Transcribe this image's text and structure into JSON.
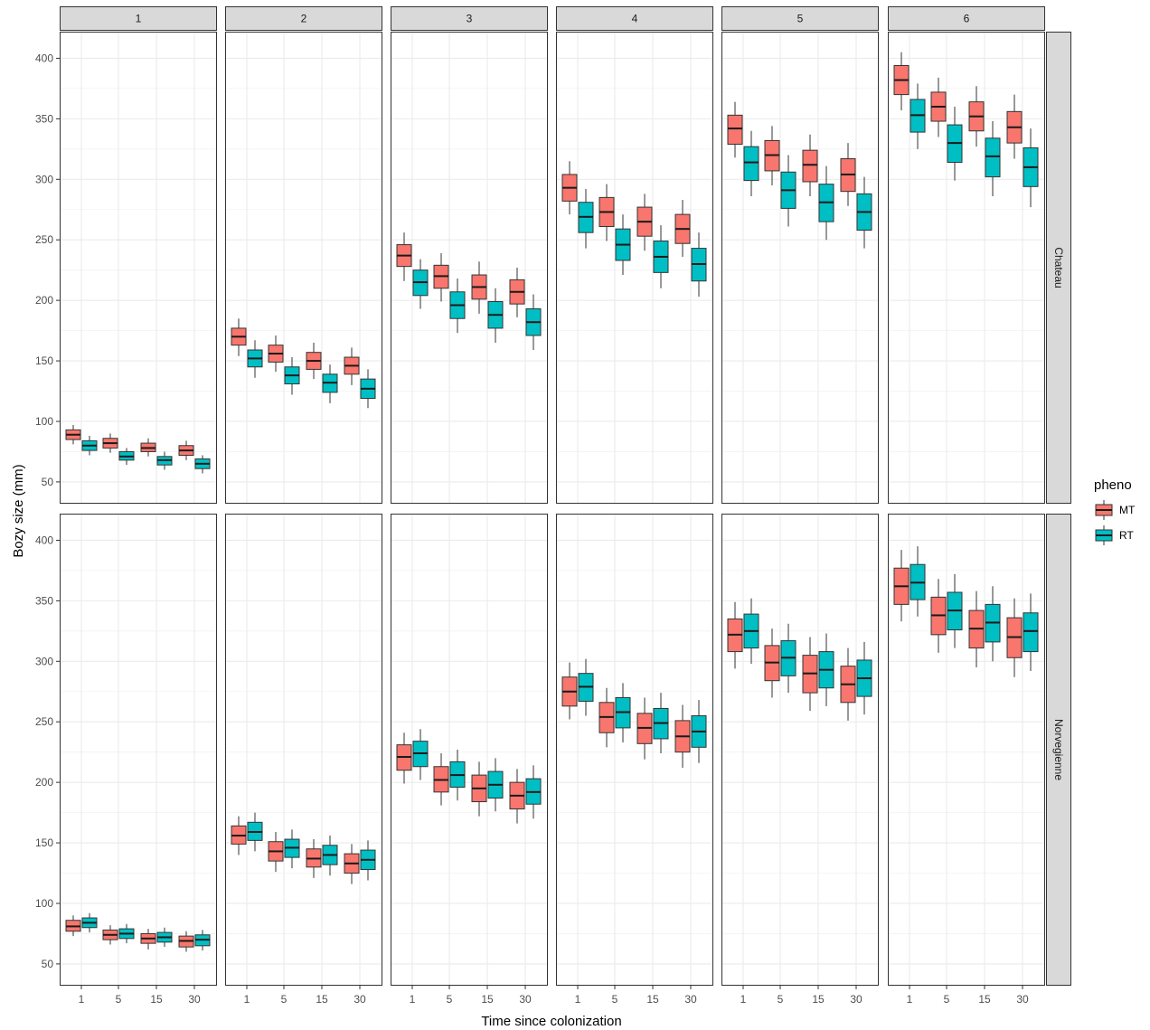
{
  "chart_data": {
    "type": "boxplot",
    "xlabel": "Time since colonization",
    "ylabel": "Bozy size (mm)",
    "ylim": [
      32,
      422
    ],
    "yticks": [
      50,
      100,
      150,
      200,
      250,
      300,
      350,
      400
    ],
    "x_categories": [
      "1",
      "5",
      "15",
      "30"
    ],
    "facet_cols": [
      "1",
      "2",
      "3",
      "4",
      "5",
      "6"
    ],
    "facet_rows": [
      "Chateau",
      "Norvegienne"
    ],
    "grid": true,
    "legend": {
      "title": "pheno",
      "position": "right",
      "entries": [
        {
          "label": "MT",
          "color": "#F8766D"
        },
        {
          "label": "RT",
          "color": "#00BFC4"
        }
      ]
    },
    "panels": [
      {
        "row": "Chateau",
        "col": "1",
        "groups": [
          {
            "x": "1",
            "MT": {
              "lw": 81,
              "q1": 85,
              "med": 89,
              "q3": 93,
              "uw": 97
            },
            "RT": {
              "lw": 72,
              "q1": 76,
              "med": 80,
              "q3": 84,
              "uw": 88
            }
          },
          {
            "x": "5",
            "MT": {
              "lw": 74,
              "q1": 78,
              "med": 82,
              "q3": 86,
              "uw": 90
            },
            "RT": {
              "lw": 64,
              "q1": 68,
              "med": 71,
              "q3": 75,
              "uw": 78
            }
          },
          {
            "x": "15",
            "MT": {
              "lw": 71,
              "q1": 75,
              "med": 78,
              "q3": 82,
              "uw": 86
            },
            "RT": {
              "lw": 60,
              "q1": 64,
              "med": 68,
              "q3": 71,
              "uw": 75
            }
          },
          {
            "x": "30",
            "MT": {
              "lw": 68,
              "q1": 72,
              "med": 76,
              "q3": 80,
              "uw": 84
            },
            "RT": {
              "lw": 57,
              "q1": 61,
              "med": 65,
              "q3": 69,
              "uw": 72
            }
          }
        ]
      },
      {
        "row": "Chateau",
        "col": "2",
        "groups": [
          {
            "x": "1",
            "MT": {
              "lw": 154,
              "q1": 163,
              "med": 170,
              "q3": 177,
              "uw": 185
            },
            "RT": {
              "lw": 136,
              "q1": 145,
              "med": 152,
              "q3": 159,
              "uw": 167
            }
          },
          {
            "x": "5",
            "MT": {
              "lw": 141,
              "q1": 149,
              "med": 156,
              "q3": 163,
              "uw": 171
            },
            "RT": {
              "lw": 122,
              "q1": 131,
              "med": 138,
              "q3": 145,
              "uw": 153
            }
          },
          {
            "x": "15",
            "MT": {
              "lw": 135,
              "q1": 143,
              "med": 150,
              "q3": 157,
              "uw": 165
            },
            "RT": {
              "lw": 115,
              "q1": 124,
              "med": 132,
              "q3": 139,
              "uw": 147
            }
          },
          {
            "x": "30",
            "MT": {
              "lw": 130,
              "q1": 139,
              "med": 146,
              "q3": 153,
              "uw": 161
            },
            "RT": {
              "lw": 111,
              "q1": 119,
              "med": 127,
              "q3": 135,
              "uw": 143
            }
          }
        ]
      },
      {
        "row": "Chateau",
        "col": "3",
        "groups": [
          {
            "x": "1",
            "MT": {
              "lw": 216,
              "q1": 228,
              "med": 237,
              "q3": 246,
              "uw": 256
            },
            "RT": {
              "lw": 193,
              "q1": 204,
              "med": 215,
              "q3": 225,
              "uw": 234
            }
          },
          {
            "x": "5",
            "MT": {
              "lw": 199,
              "q1": 210,
              "med": 220,
              "q3": 229,
              "uw": 239
            },
            "RT": {
              "lw": 173,
              "q1": 185,
              "med": 196,
              "q3": 207,
              "uw": 218
            }
          },
          {
            "x": "15",
            "MT": {
              "lw": 189,
              "q1": 201,
              "med": 211,
              "q3": 221,
              "uw": 232
            },
            "RT": {
              "lw": 165,
              "q1": 177,
              "med": 188,
              "q3": 199,
              "uw": 210
            }
          },
          {
            "x": "30",
            "MT": {
              "lw": 186,
              "q1": 197,
              "med": 207,
              "q3": 217,
              "uw": 227
            },
            "RT": {
              "lw": 159,
              "q1": 171,
              "med": 182,
              "q3": 193,
              "uw": 205
            }
          }
        ]
      },
      {
        "row": "Chateau",
        "col": "4",
        "groups": [
          {
            "x": "1",
            "MT": {
              "lw": 271,
              "q1": 282,
              "med": 293,
              "q3": 304,
              "uw": 315
            },
            "RT": {
              "lw": 243,
              "q1": 256,
              "med": 269,
              "q3": 281,
              "uw": 292
            }
          },
          {
            "x": "5",
            "MT": {
              "lw": 249,
              "q1": 261,
              "med": 273,
              "q3": 285,
              "uw": 296
            },
            "RT": {
              "lw": 221,
              "q1": 233,
              "med": 246,
              "q3": 259,
              "uw": 271
            }
          },
          {
            "x": "15",
            "MT": {
              "lw": 241,
              "q1": 253,
              "med": 265,
              "q3": 277,
              "uw": 288
            },
            "RT": {
              "lw": 210,
              "q1": 223,
              "med": 236,
              "q3": 249,
              "uw": 262
            }
          },
          {
            "x": "30",
            "MT": {
              "lw": 236,
              "q1": 247,
              "med": 259,
              "q3": 271,
              "uw": 283
            },
            "RT": {
              "lw": 203,
              "q1": 216,
              "med": 230,
              "q3": 243,
              "uw": 256
            }
          }
        ]
      },
      {
        "row": "Chateau",
        "col": "5",
        "groups": [
          {
            "x": "1",
            "MT": {
              "lw": 318,
              "q1": 329,
              "med": 342,
              "q3": 353,
              "uw": 364
            },
            "RT": {
              "lw": 286,
              "q1": 299,
              "med": 314,
              "q3": 327,
              "uw": 340
            }
          },
          {
            "x": "5",
            "MT": {
              "lw": 295,
              "q1": 307,
              "med": 320,
              "q3": 332,
              "uw": 344
            },
            "RT": {
              "lw": 261,
              "q1": 276,
              "med": 291,
              "q3": 306,
              "uw": 320
            }
          },
          {
            "x": "15",
            "MT": {
              "lw": 286,
              "q1": 298,
              "med": 312,
              "q3": 324,
              "uw": 337
            },
            "RT": {
              "lw": 250,
              "q1": 265,
              "med": 281,
              "q3": 296,
              "uw": 311
            }
          },
          {
            "x": "30",
            "MT": {
              "lw": 278,
              "q1": 290,
              "med": 304,
              "q3": 317,
              "uw": 330
            },
            "RT": {
              "lw": 243,
              "q1": 258,
              "med": 273,
              "q3": 288,
              "uw": 302
            }
          }
        ]
      },
      {
        "row": "Chateau",
        "col": "6",
        "groups": [
          {
            "x": "1",
            "MT": {
              "lw": 357,
              "q1": 370,
              "med": 382,
              "q3": 394,
              "uw": 405
            },
            "RT": {
              "lw": 325,
              "q1": 339,
              "med": 353,
              "q3": 366,
              "uw": 379
            }
          },
          {
            "x": "5",
            "MT": {
              "lw": 335,
              "q1": 348,
              "med": 360,
              "q3": 372,
              "uw": 384
            },
            "RT": {
              "lw": 299,
              "q1": 314,
              "med": 330,
              "q3": 345,
              "uw": 360
            }
          },
          {
            "x": "15",
            "MT": {
              "lw": 327,
              "q1": 340,
              "med": 352,
              "q3": 364,
              "uw": 377
            },
            "RT": {
              "lw": 286,
              "q1": 302,
              "med": 319,
              "q3": 334,
              "uw": 348
            }
          },
          {
            "x": "30",
            "MT": {
              "lw": 317,
              "q1": 330,
              "med": 343,
              "q3": 356,
              "uw": 370
            },
            "RT": {
              "lw": 277,
              "q1": 294,
              "med": 310,
              "q3": 326,
              "uw": 342
            }
          }
        ]
      },
      {
        "row": "Norvegienne",
        "col": "1",
        "groups": [
          {
            "x": "1",
            "MT": {
              "lw": 73,
              "q1": 77,
              "med": 81,
              "q3": 86,
              "uw": 90
            },
            "RT": {
              "lw": 76,
              "q1": 80,
              "med": 84,
              "q3": 88,
              "uw": 92
            }
          },
          {
            "x": "5",
            "MT": {
              "lw": 66,
              "q1": 70,
              "med": 74,
              "q3": 78,
              "uw": 82
            },
            "RT": {
              "lw": 67,
              "q1": 71,
              "med": 75,
              "q3": 79,
              "uw": 83
            }
          },
          {
            "x": "15",
            "MT": {
              "lw": 62,
              "q1": 67,
              "med": 71,
              "q3": 75,
              "uw": 79
            },
            "RT": {
              "lw": 64,
              "q1": 68,
              "med": 72,
              "q3": 76,
              "uw": 80
            }
          },
          {
            "x": "30",
            "MT": {
              "lw": 60,
              "q1": 64,
              "med": 69,
              "q3": 73,
              "uw": 77
            },
            "RT": {
              "lw": 61,
              "q1": 65,
              "med": 70,
              "q3": 74,
              "uw": 78
            }
          }
        ]
      },
      {
        "row": "Norvegienne",
        "col": "2",
        "groups": [
          {
            "x": "1",
            "MT": {
              "lw": 140,
              "q1": 149,
              "med": 156,
              "q3": 164,
              "uw": 172
            },
            "RT": {
              "lw": 143,
              "q1": 152,
              "med": 159,
              "q3": 167,
              "uw": 175
            }
          },
          {
            "x": "5",
            "MT": {
              "lw": 126,
              "q1": 135,
              "med": 143,
              "q3": 151,
              "uw": 159
            },
            "RT": {
              "lw": 129,
              "q1": 138,
              "med": 146,
              "q3": 153,
              "uw": 161
            }
          },
          {
            "x": "15",
            "MT": {
              "lw": 121,
              "q1": 130,
              "med": 137,
              "q3": 145,
              "uw": 153
            },
            "RT": {
              "lw": 123,
              "q1": 132,
              "med": 140,
              "q3": 148,
              "uw": 156
            }
          },
          {
            "x": "30",
            "MT": {
              "lw": 116,
              "q1": 125,
              "med": 133,
              "q3": 141,
              "uw": 149
            },
            "RT": {
              "lw": 119,
              "q1": 128,
              "med": 136,
              "q3": 144,
              "uw": 152
            }
          }
        ]
      },
      {
        "row": "Norvegienne",
        "col": "3",
        "groups": [
          {
            "x": "1",
            "MT": {
              "lw": 199,
              "q1": 210,
              "med": 221,
              "q3": 231,
              "uw": 241
            },
            "RT": {
              "lw": 202,
              "q1": 213,
              "med": 224,
              "q3": 234,
              "uw": 244
            }
          },
          {
            "x": "5",
            "MT": {
              "lw": 181,
              "q1": 192,
              "med": 202,
              "q3": 213,
              "uw": 224
            },
            "RT": {
              "lw": 185,
              "q1": 196,
              "med": 206,
              "q3": 217,
              "uw": 227
            }
          },
          {
            "x": "15",
            "MT": {
              "lw": 172,
              "q1": 184,
              "med": 195,
              "q3": 206,
              "uw": 217
            },
            "RT": {
              "lw": 176,
              "q1": 187,
              "med": 198,
              "q3": 209,
              "uw": 220
            }
          },
          {
            "x": "30",
            "MT": {
              "lw": 166,
              "q1": 178,
              "med": 189,
              "q3": 200,
              "uw": 211
            },
            "RT": {
              "lw": 170,
              "q1": 182,
              "med": 192,
              "q3": 203,
              "uw": 214
            }
          }
        ]
      },
      {
        "row": "Norvegienne",
        "col": "4",
        "groups": [
          {
            "x": "1",
            "MT": {
              "lw": 252,
              "q1": 263,
              "med": 275,
              "q3": 287,
              "uw": 299
            },
            "RT": {
              "lw": 255,
              "q1": 267,
              "med": 279,
              "q3": 290,
              "uw": 302
            }
          },
          {
            "x": "5",
            "MT": {
              "lw": 229,
              "q1": 241,
              "med": 254,
              "q3": 266,
              "uw": 278
            },
            "RT": {
              "lw": 233,
              "q1": 245,
              "med": 258,
              "q3": 270,
              "uw": 282
            }
          },
          {
            "x": "15",
            "MT": {
              "lw": 219,
              "q1": 232,
              "med": 245,
              "q3": 257,
              "uw": 270
            },
            "RT": {
              "lw": 224,
              "q1": 236,
              "med": 249,
              "q3": 261,
              "uw": 274
            }
          },
          {
            "x": "30",
            "MT": {
              "lw": 212,
              "q1": 225,
              "med": 238,
              "q3": 251,
              "uw": 264
            },
            "RT": {
              "lw": 216,
              "q1": 229,
              "med": 242,
              "q3": 255,
              "uw": 268
            }
          }
        ]
      },
      {
        "row": "Norvegienne",
        "col": "5",
        "groups": [
          {
            "x": "1",
            "MT": {
              "lw": 294,
              "q1": 308,
              "med": 322,
              "q3": 335,
              "uw": 349
            },
            "RT": {
              "lw": 298,
              "q1": 311,
              "med": 325,
              "q3": 339,
              "uw": 352
            }
          },
          {
            "x": "5",
            "MT": {
              "lw": 270,
              "q1": 284,
              "med": 299,
              "q3": 313,
              "uw": 327
            },
            "RT": {
              "lw": 274,
              "q1": 288,
              "med": 303,
              "q3": 317,
              "uw": 331
            }
          },
          {
            "x": "15",
            "MT": {
              "lw": 259,
              "q1": 274,
              "med": 290,
              "q3": 305,
              "uw": 320
            },
            "RT": {
              "lw": 263,
              "q1": 278,
              "med": 293,
              "q3": 308,
              "uw": 323
            }
          },
          {
            "x": "30",
            "MT": {
              "lw": 251,
              "q1": 266,
              "med": 281,
              "q3": 296,
              "uw": 311
            },
            "RT": {
              "lw": 256,
              "q1": 271,
              "med": 286,
              "q3": 301,
              "uw": 316
            }
          }
        ]
      },
      {
        "row": "Norvegienne",
        "col": "6",
        "groups": [
          {
            "x": "1",
            "MT": {
              "lw": 333,
              "q1": 347,
              "med": 362,
              "q3": 377,
              "uw": 392
            },
            "RT": {
              "lw": 337,
              "q1": 351,
              "med": 365,
              "q3": 380,
              "uw": 395
            }
          },
          {
            "x": "5",
            "MT": {
              "lw": 307,
              "q1": 322,
              "med": 338,
              "q3": 353,
              "uw": 368
            },
            "RT": {
              "lw": 311,
              "q1": 326,
              "med": 342,
              "q3": 357,
              "uw": 372
            }
          },
          {
            "x": "15",
            "MT": {
              "lw": 295,
              "q1": 311,
              "med": 327,
              "q3": 342,
              "uw": 358
            },
            "RT": {
              "lw": 300,
              "q1": 316,
              "med": 332,
              "q3": 347,
              "uw": 362
            }
          },
          {
            "x": "30",
            "MT": {
              "lw": 287,
              "q1": 303,
              "med": 320,
              "q3": 336,
              "uw": 352
            },
            "RT": {
              "lw": 292,
              "q1": 308,
              "med": 325,
              "q3": 340,
              "uw": 356
            }
          }
        ]
      }
    ]
  }
}
